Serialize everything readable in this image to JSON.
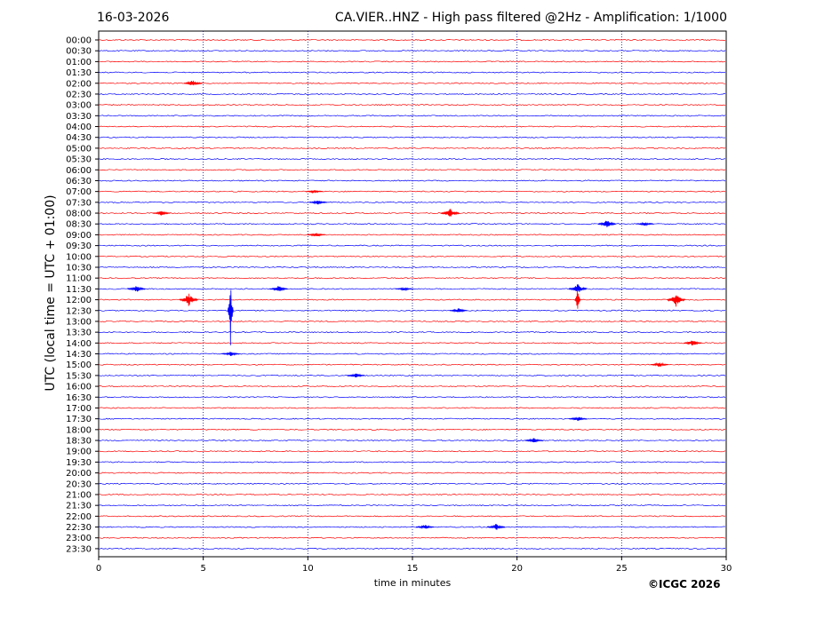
{
  "header": {
    "date": "16-03-2026",
    "title": "CA.VIER..HNZ - High pass filtered @2Hz - Amplification: 1/1000"
  },
  "credit": "©ICGC 2026",
  "colors": {
    "red": "#ff0000",
    "blue": "#0000ff",
    "grid": "#000080"
  },
  "chart_data": {
    "type": "line",
    "title": "CA.VIER..HNZ - High pass filtered @2Hz - Amplification: 1/1000",
    "xlabel": "time in minutes",
    "ylabel": "UTC (local time = UTC + 01:00)",
    "xlim": [
      0,
      30
    ],
    "x_ticks": [
      "0",
      "5",
      "10",
      "15",
      "20",
      "25",
      "30"
    ],
    "grid": "vertical dotted lines at 5-minute intervals",
    "row_labels": [
      "00:00",
      "00:30",
      "01:00",
      "01:30",
      "02:00",
      "02:30",
      "03:00",
      "03:30",
      "04:00",
      "04:30",
      "05:00",
      "05:30",
      "06:00",
      "06:30",
      "07:00",
      "07:30",
      "08:00",
      "08:30",
      "09:00",
      "09:30",
      "10:00",
      "10:30",
      "11:00",
      "11:30",
      "12:00",
      "12:30",
      "13:00",
      "13:30",
      "14:00",
      "14:30",
      "15:00",
      "15:30",
      "16:00",
      "16:30",
      "17:00",
      "17:30",
      "18:00",
      "18:30",
      "19:00",
      "19:30",
      "20:00",
      "20:30",
      "21:00",
      "21:30",
      "22:00",
      "22:30",
      "23:00",
      "23:30"
    ],
    "row_colors": [
      "red",
      "blue"
    ],
    "events": [
      {
        "row": "02:00",
        "minute": 4.5,
        "amplitude": 4
      },
      {
        "row": "07:00",
        "minute": 10.3,
        "amplitude": 2
      },
      {
        "row": "07:30",
        "minute": 10.5,
        "amplitude": 3
      },
      {
        "row": "08:00",
        "minute": 16.8,
        "amplitude": 6
      },
      {
        "row": "08:00",
        "minute": 3.0,
        "amplitude": 3
      },
      {
        "row": "08:30",
        "minute": 24.3,
        "amplitude": 5
      },
      {
        "row": "08:30",
        "minute": 26.1,
        "amplitude": 2
      },
      {
        "row": "09:00",
        "minute": 10.4,
        "amplitude": 3
      },
      {
        "row": "11:30",
        "minute": 1.8,
        "amplitude": 4
      },
      {
        "row": "11:30",
        "minute": 8.6,
        "amplitude": 4
      },
      {
        "row": "11:30",
        "minute": 14.6,
        "amplitude": 2
      },
      {
        "row": "11:30",
        "minute": 22.9,
        "amplitude": 6
      },
      {
        "row": "12:00",
        "minute": 4.3,
        "amplitude": 8
      },
      {
        "row": "12:00",
        "minute": 22.9,
        "amplitude": 18
      },
      {
        "row": "12:00",
        "minute": 27.6,
        "amplitude": 8
      },
      {
        "row": "12:30",
        "minute": 6.3,
        "amplitude": 40
      },
      {
        "row": "12:30",
        "minute": 17.2,
        "amplitude": 3
      },
      {
        "row": "14:00",
        "minute": 28.4,
        "amplitude": 4
      },
      {
        "row": "14:30",
        "minute": 6.3,
        "amplitude": 3
      },
      {
        "row": "15:00",
        "minute": 26.8,
        "amplitude": 3
      },
      {
        "row": "15:30",
        "minute": 12.3,
        "amplitude": 3
      },
      {
        "row": "17:30",
        "minute": 22.9,
        "amplitude": 3
      },
      {
        "row": "18:30",
        "minute": 20.8,
        "amplitude": 3
      },
      {
        "row": "22:30",
        "minute": 19.0,
        "amplitude": 4
      },
      {
        "row": "22:30",
        "minute": 15.6,
        "amplitude": 3
      }
    ]
  }
}
